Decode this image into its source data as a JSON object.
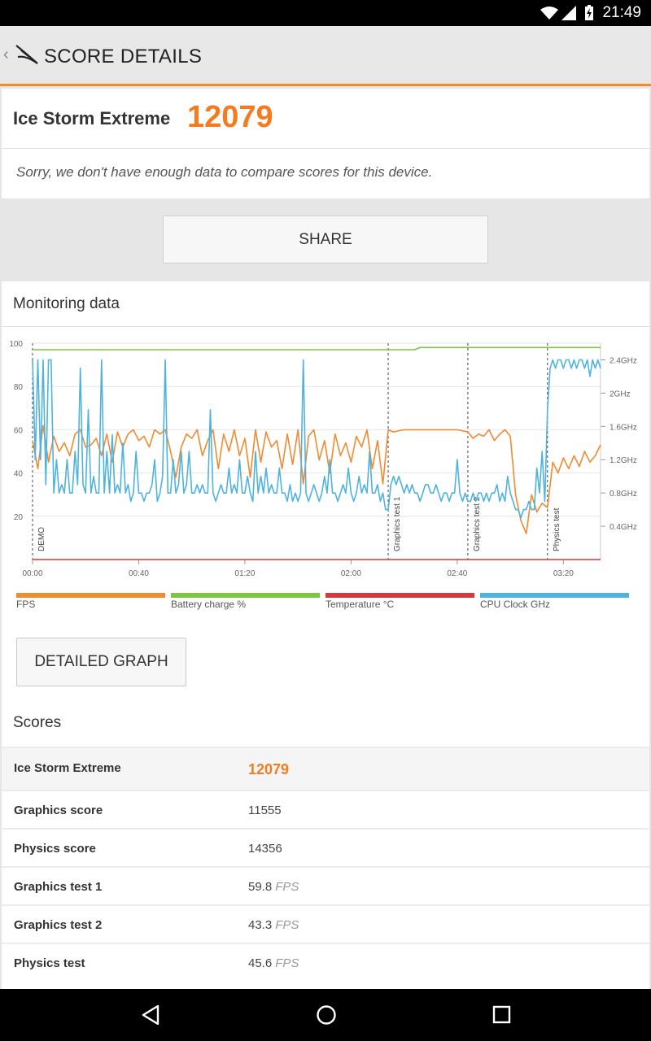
{
  "status_bar": {
    "time": "21:49"
  },
  "app_bar": {
    "title": "SCORE DETAILS"
  },
  "summary": {
    "benchmark": "Ice Storm Extreme",
    "score": "12079",
    "message": "Sorry, we don't have enough data to compare scores for this device."
  },
  "share_label": "SHARE",
  "monitoring": {
    "heading": "Monitoring data",
    "detailed_graph_label": "DETAILED GRAPH"
  },
  "chart_data": {
    "type": "line",
    "y_left_ticks": [
      "100",
      "80",
      "60",
      "40",
      "20"
    ],
    "y_right_ticks": [
      "2.4GHz",
      "2GHz",
      "1.6GHz",
      "1.2GHz",
      "0.8GHz",
      "0.4GHz"
    ],
    "x_ticks": [
      "00:00",
      "00:40",
      "01:20",
      "02:00",
      "02:40",
      "03:20"
    ],
    "markers": [
      {
        "label": "DEMO",
        "t": 0
      },
      {
        "label": "Graphics test 1",
        "t": 134
      },
      {
        "label": "Graphics test 2",
        "t": 164
      },
      {
        "label": "Physics test",
        "t": 194
      }
    ],
    "legend": [
      {
        "name": "FPS",
        "color": "#f28a30"
      },
      {
        "name": "Battery charge %",
        "color": "#7dc740"
      },
      {
        "name": "Temperature °C",
        "color": "#d9363e"
      },
      {
        "name": "CPU Clock GHz",
        "color": "#4fb3e0"
      }
    ],
    "series": [
      {
        "name": "FPS",
        "color": "#f28a30",
        "t": [
          0,
          2,
          4,
          6,
          8,
          10,
          12,
          14,
          16,
          18,
          20,
          22,
          24,
          26,
          28,
          30,
          32,
          34,
          36,
          38,
          40,
          42,
          44,
          46,
          48,
          50,
          52,
          54,
          56,
          58,
          60,
          62,
          64,
          66,
          68,
          70,
          72,
          74,
          76,
          78,
          80,
          82,
          84,
          86,
          88,
          90,
          92,
          94,
          96,
          98,
          100,
          102,
          104,
          106,
          108,
          110,
          112,
          114,
          116,
          118,
          120,
          122,
          124,
          126,
          128,
          130,
          132,
          134,
          136,
          140,
          150,
          160,
          164,
          166,
          168,
          170,
          172,
          174,
          176,
          178,
          180,
          182,
          184,
          186,
          188,
          190,
          192,
          194,
          196,
          198,
          200,
          202,
          204,
          206,
          208,
          210,
          212,
          214
        ],
        "v": [
          55,
          42,
          62,
          45,
          57,
          50,
          54,
          48,
          58,
          60,
          52,
          53,
          56,
          48,
          58,
          45,
          59,
          52,
          58,
          60,
          55,
          57,
          52,
          60,
          58,
          60,
          50,
          38,
          52,
          58,
          56,
          60,
          48,
          55,
          60,
          42,
          58,
          50,
          60,
          48,
          56,
          38,
          60,
          45,
          59,
          52,
          55,
          42,
          58,
          44,
          60,
          35,
          57,
          60,
          46,
          55,
          40,
          58,
          48,
          54,
          45,
          57,
          52,
          60,
          42,
          55,
          35,
          60,
          59,
          60,
          60,
          60,
          59,
          56,
          58,
          57,
          60,
          55,
          58,
          60,
          57,
          30,
          18,
          12,
          30,
          22,
          26,
          24,
          45,
          40,
          47,
          42,
          48,
          43,
          50,
          45,
          48,
          53
        ],
        "range": [
          0,
          100
        ]
      },
      {
        "name": "Battery charge %",
        "color": "#7dc740",
        "t": [
          0,
          130,
          144,
          146,
          214
        ],
        "v": [
          97,
          97,
          97,
          98,
          98
        ],
        "range": [
          0,
          100
        ]
      },
      {
        "name": "Temperature °C",
        "color": "#d9363e",
        "t": [
          0,
          214
        ],
        "v": [
          0,
          0
        ],
        "range": [
          0,
          100
        ]
      },
      {
        "name": "CPU Clock GHz",
        "color": "#4fb3e0",
        "t": [
          0,
          1,
          2,
          3,
          4,
          5,
          6,
          7,
          8,
          9,
          10,
          11,
          12,
          13,
          14,
          15,
          16,
          17,
          18,
          19,
          20,
          21,
          22,
          23,
          24,
          25,
          26,
          27,
          28,
          29,
          30,
          31,
          32,
          33,
          34,
          35,
          36,
          37,
          38,
          39,
          40,
          41,
          42,
          43,
          44,
          45,
          46,
          47,
          48,
          49,
          50,
          51,
          52,
          53,
          54,
          55,
          56,
          57,
          58,
          59,
          60,
          61,
          62,
          63,
          64,
          65,
          66,
          67,
          68,
          69,
          70,
          71,
          72,
          73,
          74,
          75,
          76,
          77,
          78,
          79,
          80,
          81,
          82,
          83,
          84,
          85,
          86,
          87,
          88,
          89,
          90,
          91,
          92,
          93,
          94,
          95,
          96,
          97,
          98,
          99,
          100,
          101,
          102,
          103,
          104,
          105,
          106,
          107,
          108,
          109,
          110,
          111,
          112,
          113,
          114,
          115,
          116,
          117,
          118,
          119,
          120,
          121,
          122,
          123,
          124,
          125,
          126,
          127,
          128,
          129,
          130,
          131,
          132,
          133,
          134,
          135,
          136,
          137,
          138,
          139,
          140,
          141,
          142,
          143,
          144,
          145,
          146,
          147,
          148,
          149,
          150,
          151,
          152,
          153,
          154,
          155,
          156,
          157,
          158,
          159,
          160,
          161,
          162,
          163,
          164,
          165,
          166,
          167,
          168,
          169,
          170,
          171,
          172,
          173,
          174,
          175,
          176,
          177,
          178,
          179,
          180,
          181,
          182,
          183,
          184,
          185,
          186,
          187,
          188,
          189,
          190,
          191,
          192,
          193,
          194,
          195,
          196,
          197,
          198,
          199,
          200,
          201,
          202,
          203,
          204,
          205,
          206,
          207,
          208,
          209,
          210,
          211,
          212,
          213,
          214
        ],
        "v": [
          2.4,
          1.2,
          2.4,
          1.2,
          2.4,
          0.9,
          2.4,
          2.4,
          0.8,
          1.2,
          0.8,
          0.9,
          0.8,
          1.2,
          0.8,
          0.8,
          1.3,
          0.9,
          2.3,
          0.9,
          0.8,
          1.8,
          0.8,
          1.0,
          0.8,
          0.8,
          2.4,
          0.8,
          1.3,
          0.8,
          1.5,
          0.8,
          0.9,
          0.8,
          1.4,
          0.8,
          0.9,
          0.7,
          0.8,
          1.3,
          0.8,
          0.8,
          0.7,
          0.8,
          0.8,
          0.9,
          1.2,
          0.7,
          0.8,
          1.0,
          2.4,
          0.8,
          0.8,
          1.2,
          0.8,
          0.9,
          1.3,
          0.8,
          0.9,
          1.3,
          0.8,
          0.8,
          0.9,
          0.8,
          0.9,
          0.8,
          0.8,
          1.8,
          0.8,
          0.7,
          0.8,
          0.9,
          0.8,
          0.8,
          1.1,
          0.8,
          0.9,
          0.8,
          1.2,
          0.8,
          0.8,
          1.0,
          0.8,
          0.7,
          1.3,
          0.8,
          1.0,
          0.8,
          1.1,
          0.8,
          0.9,
          0.8,
          0.8,
          1.1,
          0.8,
          0.8,
          0.7,
          0.9,
          0.7,
          0.8,
          0.7,
          0.8,
          2.4,
          0.8,
          0.7,
          0.8,
          0.9,
          0.8,
          0.7,
          0.8,
          1.0,
          0.8,
          1.2,
          0.8,
          0.8,
          0.7,
          0.8,
          0.9,
          0.8,
          1.1,
          0.8,
          0.7,
          0.8,
          1.0,
          0.8,
          0.9,
          0.8,
          1.3,
          0.8,
          0.8,
          0.9,
          0.7,
          0.8,
          0.6,
          0.6,
          0.9,
          1.0,
          0.9,
          1.0,
          0.9,
          0.8,
          0.9,
          0.8,
          0.9,
          0.8,
          0.8,
          0.7,
          0.8,
          0.9,
          0.9,
          0.8,
          0.8,
          0.9,
          0.8,
          0.7,
          0.8,
          0.8,
          0.7,
          0.8,
          0.8,
          1.2,
          0.8,
          0.7,
          0.8,
          0.7,
          0.7,
          0.8,
          0.7,
          0.8,
          0.8,
          0.7,
          0.8,
          0.7,
          0.8,
          0.8,
          0.9,
          0.7,
          0.8,
          0.7,
          1.0,
          0.8,
          0.7,
          0.6,
          0.6,
          0.5,
          0.6,
          0.6,
          0.7,
          0.6,
          0.6,
          1.1,
          0.8,
          1.3,
          0.7,
          1.8,
          2.3,
          2.4,
          2.3,
          2.4,
          2.4,
          2.3,
          2.4,
          2.4,
          2.3,
          2.4,
          2.3,
          2.4,
          2.4,
          2.3,
          2.4,
          2.2,
          2.4,
          2.3,
          2.4,
          2.3,
          2.4
        ],
        "range": [
          0,
          2.6
        ]
      }
    ]
  },
  "scores": {
    "heading": "Scores",
    "rows": [
      {
        "name": "Ice Storm Extreme",
        "value": "12079",
        "unit": ""
      },
      {
        "name": "Graphics score",
        "value": "11555",
        "unit": ""
      },
      {
        "name": "Physics score",
        "value": "14356",
        "unit": ""
      },
      {
        "name": "Graphics test 1",
        "value": "59.8",
        "unit": "FPS"
      },
      {
        "name": "Graphics test 2",
        "value": "43.3",
        "unit": "FPS"
      },
      {
        "name": "Physics test",
        "value": "45.6",
        "unit": "FPS"
      }
    ]
  }
}
